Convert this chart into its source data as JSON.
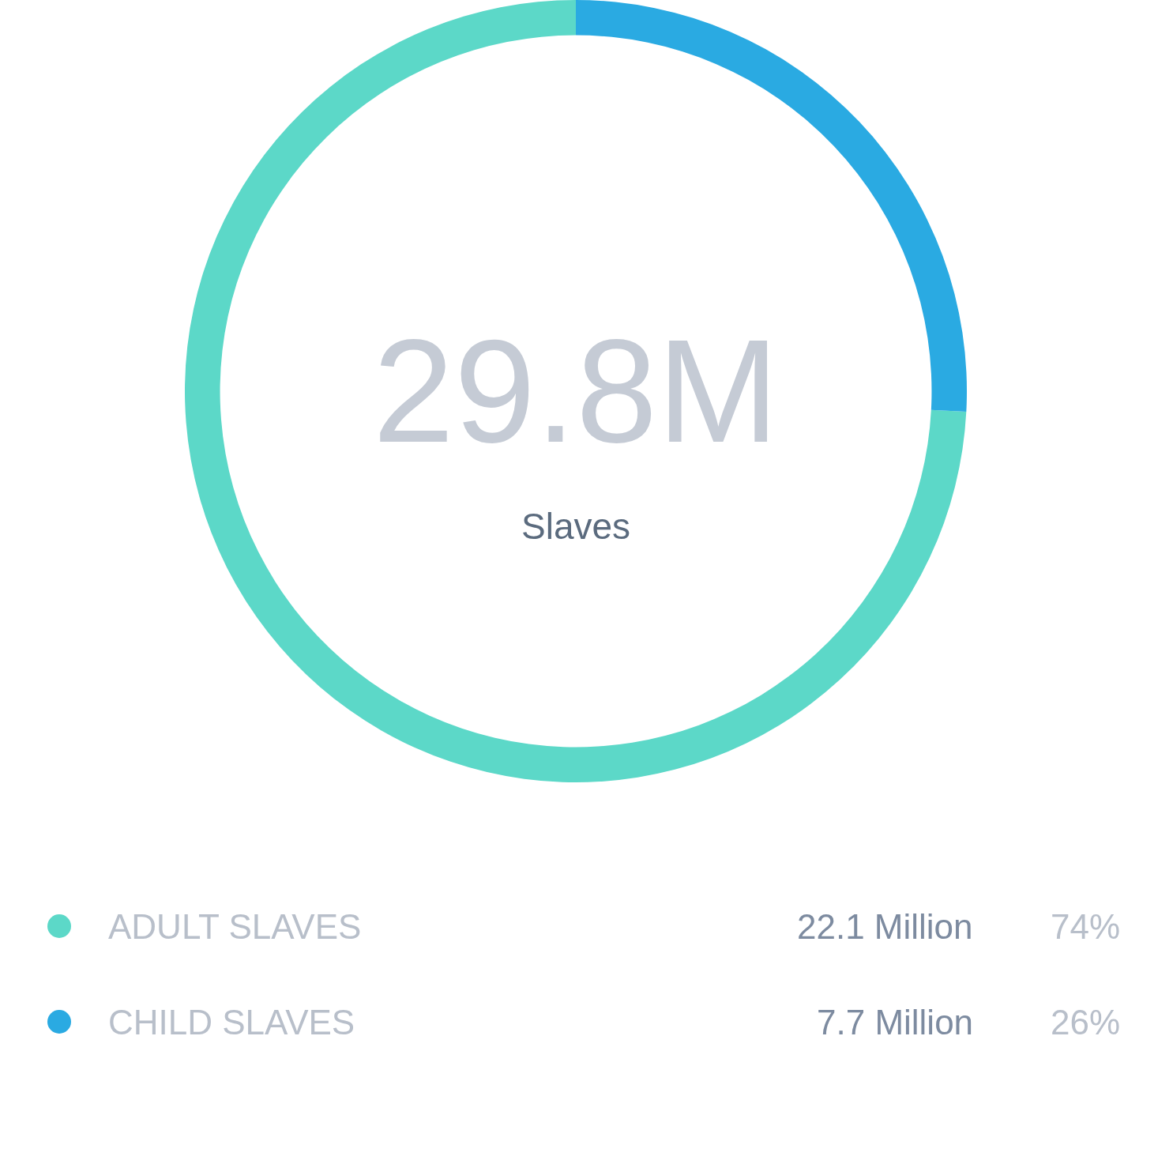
{
  "chart_data": {
    "type": "donut",
    "title": "29.8M",
    "subtitle": "Slaves",
    "categories": [
      "ADULT SLAVES",
      "CHILD SLAVES"
    ],
    "values": [
      22.1,
      7.7
    ],
    "colors": [
      "#5cd8c8",
      "#2aaae2"
    ],
    "value_labels": [
      "22.1 Million",
      "7.7 Million"
    ],
    "annotations": [
      "74%",
      "26%"
    ],
    "legend": "bottom"
  }
}
